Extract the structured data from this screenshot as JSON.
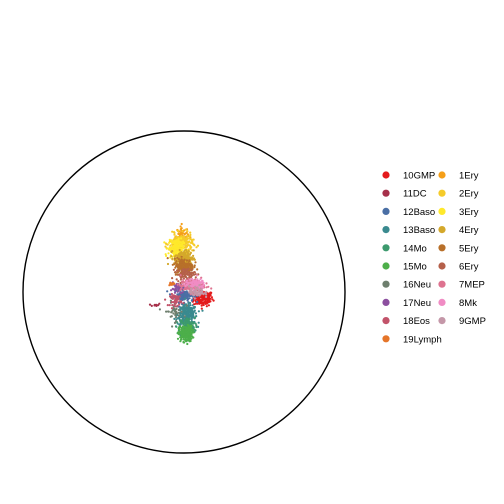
{
  "chart_data": {
    "type": "scatter",
    "title": "",
    "xlabel": "",
    "ylabel": "",
    "grid": false,
    "legend_position": "right",
    "boundary": "circle",
    "legend_columns": [
      [
        "10GMP",
        "11DC",
        "12Baso",
        "13Baso",
        "14Mo",
        "15Mo",
        "16Neu",
        "17Neu",
        "18Eos",
        "19Lymph"
      ],
      [
        "1Ery",
        "2Ery",
        "3Ery",
        "4Ery",
        "5Ery",
        "6Ery",
        "7MEP",
        "8Mk",
        "9GMP"
      ]
    ],
    "series": [
      {
        "name": "10GMP",
        "color": "#e41a1c",
        "center": [
          0.12,
          -0.04
        ],
        "spread": [
          0.05,
          0.04
        ],
        "count": 160
      },
      {
        "name": "11DC",
        "color": "#a6304a",
        "center": [
          -0.18,
          -0.08
        ],
        "spread": [
          0.03,
          0.008
        ],
        "count": 10
      },
      {
        "name": "12Baso",
        "color": "#4a6fa5",
        "center": [
          0.0,
          -0.02
        ],
        "spread": [
          0.05,
          0.035
        ],
        "count": 120
      },
      {
        "name": "13Baso",
        "color": "#3a8a8f",
        "center": [
          0.02,
          -0.14
        ],
        "spread": [
          0.05,
          0.05
        ],
        "count": 260
      },
      {
        "name": "14Mo",
        "color": "#3d9a6e",
        "center": [
          0.02,
          -0.22
        ],
        "spread": [
          0.04,
          0.05
        ],
        "count": 200
      },
      {
        "name": "15Mo",
        "color": "#4daf4a",
        "center": [
          0.01,
          -0.26
        ],
        "spread": [
          0.035,
          0.04
        ],
        "count": 220
      },
      {
        "name": "16Neu",
        "color": "#6e7f6e",
        "center": [
          -0.06,
          -0.12
        ],
        "spread": [
          0.05,
          0.05
        ],
        "count": 40
      },
      {
        "name": "17Neu",
        "color": "#8c4f9f",
        "center": [
          -0.04,
          0.02
        ],
        "spread": [
          0.03,
          0.03
        ],
        "count": 40
      },
      {
        "name": "18Eos",
        "color": "#c2536a",
        "center": [
          -0.05,
          -0.05
        ],
        "spread": [
          0.03,
          0.03
        ],
        "count": 50
      },
      {
        "name": "19Lymph",
        "color": "#e5752a",
        "center": [
          -0.08,
          0.05
        ],
        "spread": [
          0.02,
          0.006
        ],
        "count": 12
      },
      {
        "name": "1Ery",
        "color": "#f59f18",
        "center": [
          -0.01,
          0.35
        ],
        "spread": [
          0.03,
          0.05
        ],
        "count": 60
      },
      {
        "name": "2Ery",
        "color": "#f5cb2a",
        "center": [
          -0.02,
          0.3
        ],
        "spread": [
          0.06,
          0.05
        ],
        "count": 220
      },
      {
        "name": "3Ery",
        "color": "#ffe92b",
        "center": [
          -0.05,
          0.27
        ],
        "spread": [
          0.04,
          0.05
        ],
        "count": 160
      },
      {
        "name": "4Ery",
        "color": "#d4a82b",
        "center": [
          0.0,
          0.21
        ],
        "spread": [
          0.05,
          0.04
        ],
        "count": 180
      },
      {
        "name": "5Ery",
        "color": "#b8702a",
        "center": [
          0.0,
          0.16
        ],
        "spread": [
          0.05,
          0.04
        ],
        "count": 200
      },
      {
        "name": "6Ery",
        "color": "#b5604a",
        "center": [
          0.01,
          0.11
        ],
        "spread": [
          0.05,
          0.03
        ],
        "count": 80
      },
      {
        "name": "7MEP",
        "color": "#de7390",
        "center": [
          0.05,
          0.04
        ],
        "spread": [
          0.06,
          0.03
        ],
        "count": 200
      },
      {
        "name": "8Mk",
        "color": "#f08cc4",
        "center": [
          0.07,
          0.05
        ],
        "spread": [
          0.05,
          0.025
        ],
        "count": 100
      },
      {
        "name": "9GMP",
        "color": "#c497a8",
        "center": [
          0.08,
          0.0
        ],
        "spread": [
          0.04,
          0.03
        ],
        "count": 60
      }
    ]
  }
}
